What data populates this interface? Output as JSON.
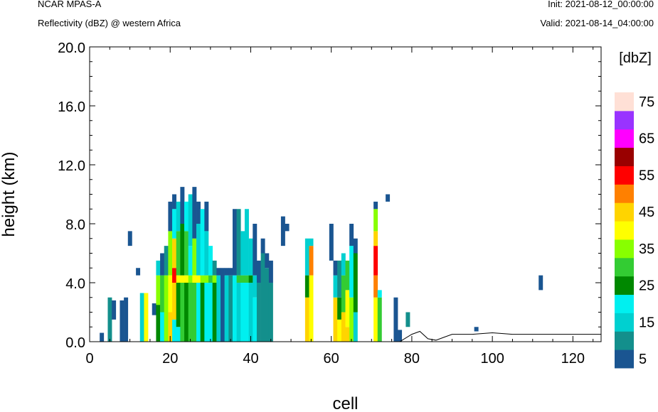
{
  "header": {
    "model": "NCAR MPAS-A",
    "field": "Reflectivity (dBZ) @ western Africa",
    "init": "Init: 2021-08-12_00:00:00",
    "valid": "Valid: 2021-08-14_04:00:00"
  },
  "colorbar": {
    "unit": "[dbZ]",
    "levels": [
      5,
      10,
      15,
      20,
      25,
      30,
      35,
      40,
      45,
      50,
      55,
      60,
      65,
      70,
      75
    ],
    "colors": [
      "#1a5591",
      "#138f8c",
      "#00d0d0",
      "#00f0f0",
      "#008800",
      "#33cc33",
      "#88ff00",
      "#ffff00",
      "#ffd400",
      "#ff8000",
      "#ff0000",
      "#990000",
      "#ff00ff",
      "#9933ff",
      "#ffe0d6"
    ],
    "labels": [
      "5",
      "15",
      "25",
      "35",
      "45",
      "55",
      "65",
      "75"
    ]
  },
  "chart_data": {
    "type": "heatmap",
    "xlabel": "cell",
    "ylabel": "height (km)",
    "xlim": [
      0,
      127
    ],
    "ylim": [
      0,
      20
    ],
    "xticks": [
      0,
      20,
      40,
      60,
      80,
      100,
      120
    ],
    "yticks": [
      0.0,
      4.0,
      8.0,
      12.0,
      16.0,
      20.0
    ],
    "ytick_labels": [
      "0.0",
      "4.0",
      "8.0",
      "12.0",
      "16.0",
      "20.0"
    ],
    "cell_height_km": 0.5,
    "columns": [
      {
        "x": 3,
        "segs": [
          [
            0,
            0.6,
            5
          ]
        ]
      },
      {
        "x": 5,
        "segs": [
          [
            0,
            3.0,
            12
          ]
        ]
      },
      {
        "x": 6,
        "segs": [
          [
            1.5,
            2.8,
            5
          ]
        ]
      },
      {
        "x": 8,
        "segs": [
          [
            0,
            2.8,
            5
          ]
        ]
      },
      {
        "x": 9,
        "segs": [
          [
            0,
            3.0,
            5
          ]
        ]
      },
      {
        "x": 10,
        "segs": [
          [
            6.5,
            7.5,
            5
          ]
        ]
      },
      {
        "x": 12,
        "segs": [
          [
            4.5,
            5.0,
            5
          ]
        ]
      },
      {
        "x": 13,
        "segs": [
          [
            0,
            3.3,
            18
          ]
        ]
      },
      {
        "x": 14,
        "segs": [
          [
            0,
            3.3,
            40
          ]
        ]
      },
      {
        "x": 16,
        "segs": [
          [
            1.8,
            2.6,
            5
          ]
        ]
      },
      {
        "x": 17,
        "segs": [
          [
            0,
            2.5,
            25
          ],
          [
            2.5,
            4.5,
            35
          ],
          [
            4.5,
            5.5,
            18
          ]
        ]
      },
      {
        "x": 18,
        "segs": [
          [
            0,
            2.0,
            20
          ],
          [
            2.0,
            4.5,
            30
          ],
          [
            4.5,
            6.0,
            5
          ]
        ]
      },
      {
        "x": 19,
        "segs": [
          [
            0,
            4.5,
            35
          ],
          [
            4.5,
            6.5,
            12
          ]
        ]
      },
      {
        "x": 20,
        "segs": [
          [
            0,
            2.0,
            45
          ],
          [
            2.0,
            4.5,
            40
          ],
          [
            4.5,
            7.5,
            35
          ],
          [
            7.5,
            9.5,
            5
          ]
        ]
      },
      {
        "x": 21,
        "segs": [
          [
            0,
            1.5,
            20
          ],
          [
            1.5,
            4.0,
            45
          ],
          [
            4.0,
            5.0,
            55
          ],
          [
            5.0,
            7.0,
            45
          ],
          [
            7.0,
            9.0,
            20
          ],
          [
            9.0,
            10.0,
            5
          ]
        ]
      },
      {
        "x": 22,
        "segs": [
          [
            0,
            1.0,
            20
          ],
          [
            1.0,
            4.0,
            25
          ],
          [
            4.0,
            4.5,
            40
          ],
          [
            4.5,
            7.5,
            30
          ],
          [
            7.5,
            9.5,
            15
          ]
        ]
      },
      {
        "x": 23,
        "segs": [
          [
            0,
            4.0,
            30
          ],
          [
            4.0,
            4.5,
            40
          ],
          [
            4.5,
            8.0,
            25
          ],
          [
            8.0,
            10.5,
            5
          ]
        ]
      },
      {
        "x": 24,
        "segs": [
          [
            0,
            4.0,
            25
          ],
          [
            4.0,
            4.5,
            40
          ],
          [
            4.5,
            7.5,
            30
          ],
          [
            7.5,
            9.5,
            20
          ]
        ]
      },
      {
        "x": 25,
        "segs": [
          [
            0,
            4.0,
            30
          ],
          [
            4.0,
            4.5,
            35
          ],
          [
            4.5,
            6.5,
            20
          ],
          [
            6.5,
            10.0,
            15
          ]
        ]
      },
      {
        "x": 26,
        "segs": [
          [
            0,
            4.0,
            30
          ],
          [
            4.0,
            4.5,
            40
          ],
          [
            4.5,
            7.0,
            35
          ],
          [
            7.0,
            10.5,
            5
          ]
        ]
      },
      {
        "x": 27,
        "segs": [
          [
            0,
            4.0,
            20
          ],
          [
            4.0,
            4.5,
            40
          ],
          [
            4.5,
            8.0,
            15
          ],
          [
            8.0,
            9.5,
            5
          ]
        ]
      },
      {
        "x": 28,
        "segs": [
          [
            0,
            4.0,
            25
          ],
          [
            4.0,
            4.5,
            35
          ],
          [
            4.5,
            9.0,
            20
          ]
        ]
      },
      {
        "x": 29,
        "segs": [
          [
            0,
            4.0,
            20
          ],
          [
            4.0,
            4.5,
            35
          ],
          [
            4.5,
            7.5,
            18
          ],
          [
            7.5,
            9.5,
            5
          ]
        ]
      },
      {
        "x": 30,
        "segs": [
          [
            0,
            4.0,
            20
          ],
          [
            4.0,
            4.5,
            30
          ],
          [
            4.5,
            6.5,
            20
          ]
        ]
      },
      {
        "x": 31,
        "segs": [
          [
            0,
            4.0,
            25
          ],
          [
            4.0,
            4.5,
            35
          ],
          [
            4.5,
            5.5,
            12
          ]
        ]
      },
      {
        "x": 32,
        "segs": [
          [
            0,
            4.5,
            18
          ],
          [
            4.5,
            5.0,
            5
          ]
        ]
      },
      {
        "x": 33,
        "segs": [
          [
            0,
            5.0,
            5
          ]
        ]
      },
      {
        "x": 34,
        "segs": [
          [
            0,
            4.5,
            18
          ],
          [
            4.5,
            5.0,
            5
          ]
        ]
      },
      {
        "x": 35,
        "segs": [
          [
            0,
            4.5,
            12
          ],
          [
            4.5,
            5.0,
            5
          ]
        ]
      },
      {
        "x": 36,
        "segs": [
          [
            0,
            4.5,
            20
          ],
          [
            4.5,
            9.0,
            5
          ]
        ]
      },
      {
        "x": 37,
        "segs": [
          [
            0,
            4.0,
            18
          ],
          [
            4.0,
            4.5,
            30
          ],
          [
            4.5,
            9.0,
            12
          ]
        ]
      },
      {
        "x": 38,
        "segs": [
          [
            0,
            4.0,
            20
          ],
          [
            4.0,
            4.5,
            30
          ],
          [
            4.5,
            7.5,
            18
          ]
        ]
      },
      {
        "x": 39,
        "segs": [
          [
            0,
            4.0,
            20
          ],
          [
            4.0,
            4.5,
            30
          ],
          [
            4.5,
            9.0,
            15
          ]
        ]
      },
      {
        "x": 40,
        "segs": [
          [
            0,
            4.0,
            18
          ],
          [
            4.0,
            4.5,
            25
          ],
          [
            4.5,
            7.0,
            15
          ]
        ]
      },
      {
        "x": 41,
        "segs": [
          [
            0,
            3.0,
            20
          ],
          [
            3.0,
            4.5,
            15
          ],
          [
            4.5,
            8.0,
            5
          ]
        ]
      },
      {
        "x": 42,
        "segs": [
          [
            0,
            4.0,
            12
          ],
          [
            4.0,
            5.5,
            5
          ]
        ]
      },
      {
        "x": 43,
        "segs": [
          [
            0,
            6.0,
            12
          ],
          [
            6.0,
            7.0,
            5
          ]
        ]
      },
      {
        "x": 44,
        "segs": [
          [
            0,
            5.0,
            12
          ],
          [
            5.0,
            6.0,
            5
          ]
        ]
      },
      {
        "x": 45,
        "segs": [
          [
            0,
            4.0,
            12
          ],
          [
            4.0,
            5.5,
            5
          ]
        ]
      },
      {
        "x": 48,
        "segs": [
          [
            6.5,
            8.5,
            5
          ]
        ]
      },
      {
        "x": 49,
        "segs": [
          [
            7.5,
            8.0,
            5
          ]
        ]
      },
      {
        "x": 54,
        "segs": [
          [
            0,
            3.0,
            45
          ],
          [
            3.0,
            4.5,
            25
          ],
          [
            4.5,
            7.0,
            15
          ]
        ]
      },
      {
        "x": 55,
        "segs": [
          [
            0,
            4.5,
            40
          ],
          [
            4.5,
            6.5,
            50
          ],
          [
            6.5,
            7.0,
            15
          ]
        ]
      },
      {
        "x": 60,
        "segs": [
          [
            5.5,
            8.0,
            5
          ]
        ]
      },
      {
        "x": 61,
        "segs": [
          [
            0,
            3.0,
            45
          ],
          [
            3.0,
            4.5,
            15
          ],
          [
            4.5,
            5.5,
            5
          ]
        ]
      },
      {
        "x": 62,
        "segs": [
          [
            0,
            1.5,
            40
          ],
          [
            1.5,
            3.0,
            25
          ],
          [
            3.0,
            5.5,
            12
          ]
        ]
      },
      {
        "x": 63,
        "segs": [
          [
            0,
            2.0,
            45
          ],
          [
            2.0,
            4.5,
            30
          ],
          [
            4.5,
            6.0,
            15
          ]
        ]
      },
      {
        "x": 64,
        "segs": [
          [
            0,
            1.0,
            45
          ],
          [
            1.0,
            3.5,
            40
          ],
          [
            3.5,
            5.5,
            30
          ]
        ]
      },
      {
        "x": 65,
        "segs": [
          [
            0,
            3.0,
            35
          ],
          [
            3.0,
            6.5,
            20
          ],
          [
            6.5,
            8.0,
            5
          ]
        ]
      },
      {
        "x": 66,
        "segs": [
          [
            0,
            2.0,
            15
          ],
          [
            2.0,
            6.0,
            25
          ],
          [
            6.0,
            7.0,
            5
          ]
        ]
      },
      {
        "x": 71,
        "segs": [
          [
            0,
            3.0,
            40
          ],
          [
            3.0,
            4.5,
            50
          ],
          [
            4.5,
            6.5,
            55
          ],
          [
            6.5,
            7.5,
            45
          ],
          [
            7.5,
            9.0,
            35
          ],
          [
            9.0,
            9.5,
            5
          ]
        ]
      },
      {
        "x": 72,
        "segs": [
          [
            0,
            3.0,
            30
          ],
          [
            3.0,
            3.5,
            20
          ]
        ]
      },
      {
        "x": 74,
        "segs": [
          [
            9.5,
            10.0,
            5
          ]
        ]
      },
      {
        "x": 76,
        "segs": [
          [
            0,
            3.0,
            5
          ]
        ]
      },
      {
        "x": 77,
        "segs": [
          [
            0,
            0.8,
            5
          ]
        ]
      },
      {
        "x": 79,
        "segs": [
          [
            1.0,
            2.0,
            12
          ]
        ]
      },
      {
        "x": 96,
        "segs": [
          [
            0.7,
            1.0,
            5
          ]
        ]
      },
      {
        "x": 112,
        "segs": [
          [
            3.5,
            4.5,
            5
          ]
        ]
      }
    ],
    "terrain": [
      [
        0,
        0.0
      ],
      [
        77,
        0.0
      ],
      [
        80,
        0.5
      ],
      [
        82,
        0.7
      ],
      [
        84,
        0.2
      ],
      [
        86,
        0.1
      ],
      [
        88,
        0.3
      ],
      [
        90,
        0.5
      ],
      [
        95,
        0.5
      ],
      [
        100,
        0.6
      ],
      [
        105,
        0.5
      ],
      [
        110,
        0.5
      ],
      [
        115,
        0.5
      ],
      [
        120,
        0.5
      ],
      [
        127,
        0.5
      ]
    ]
  }
}
